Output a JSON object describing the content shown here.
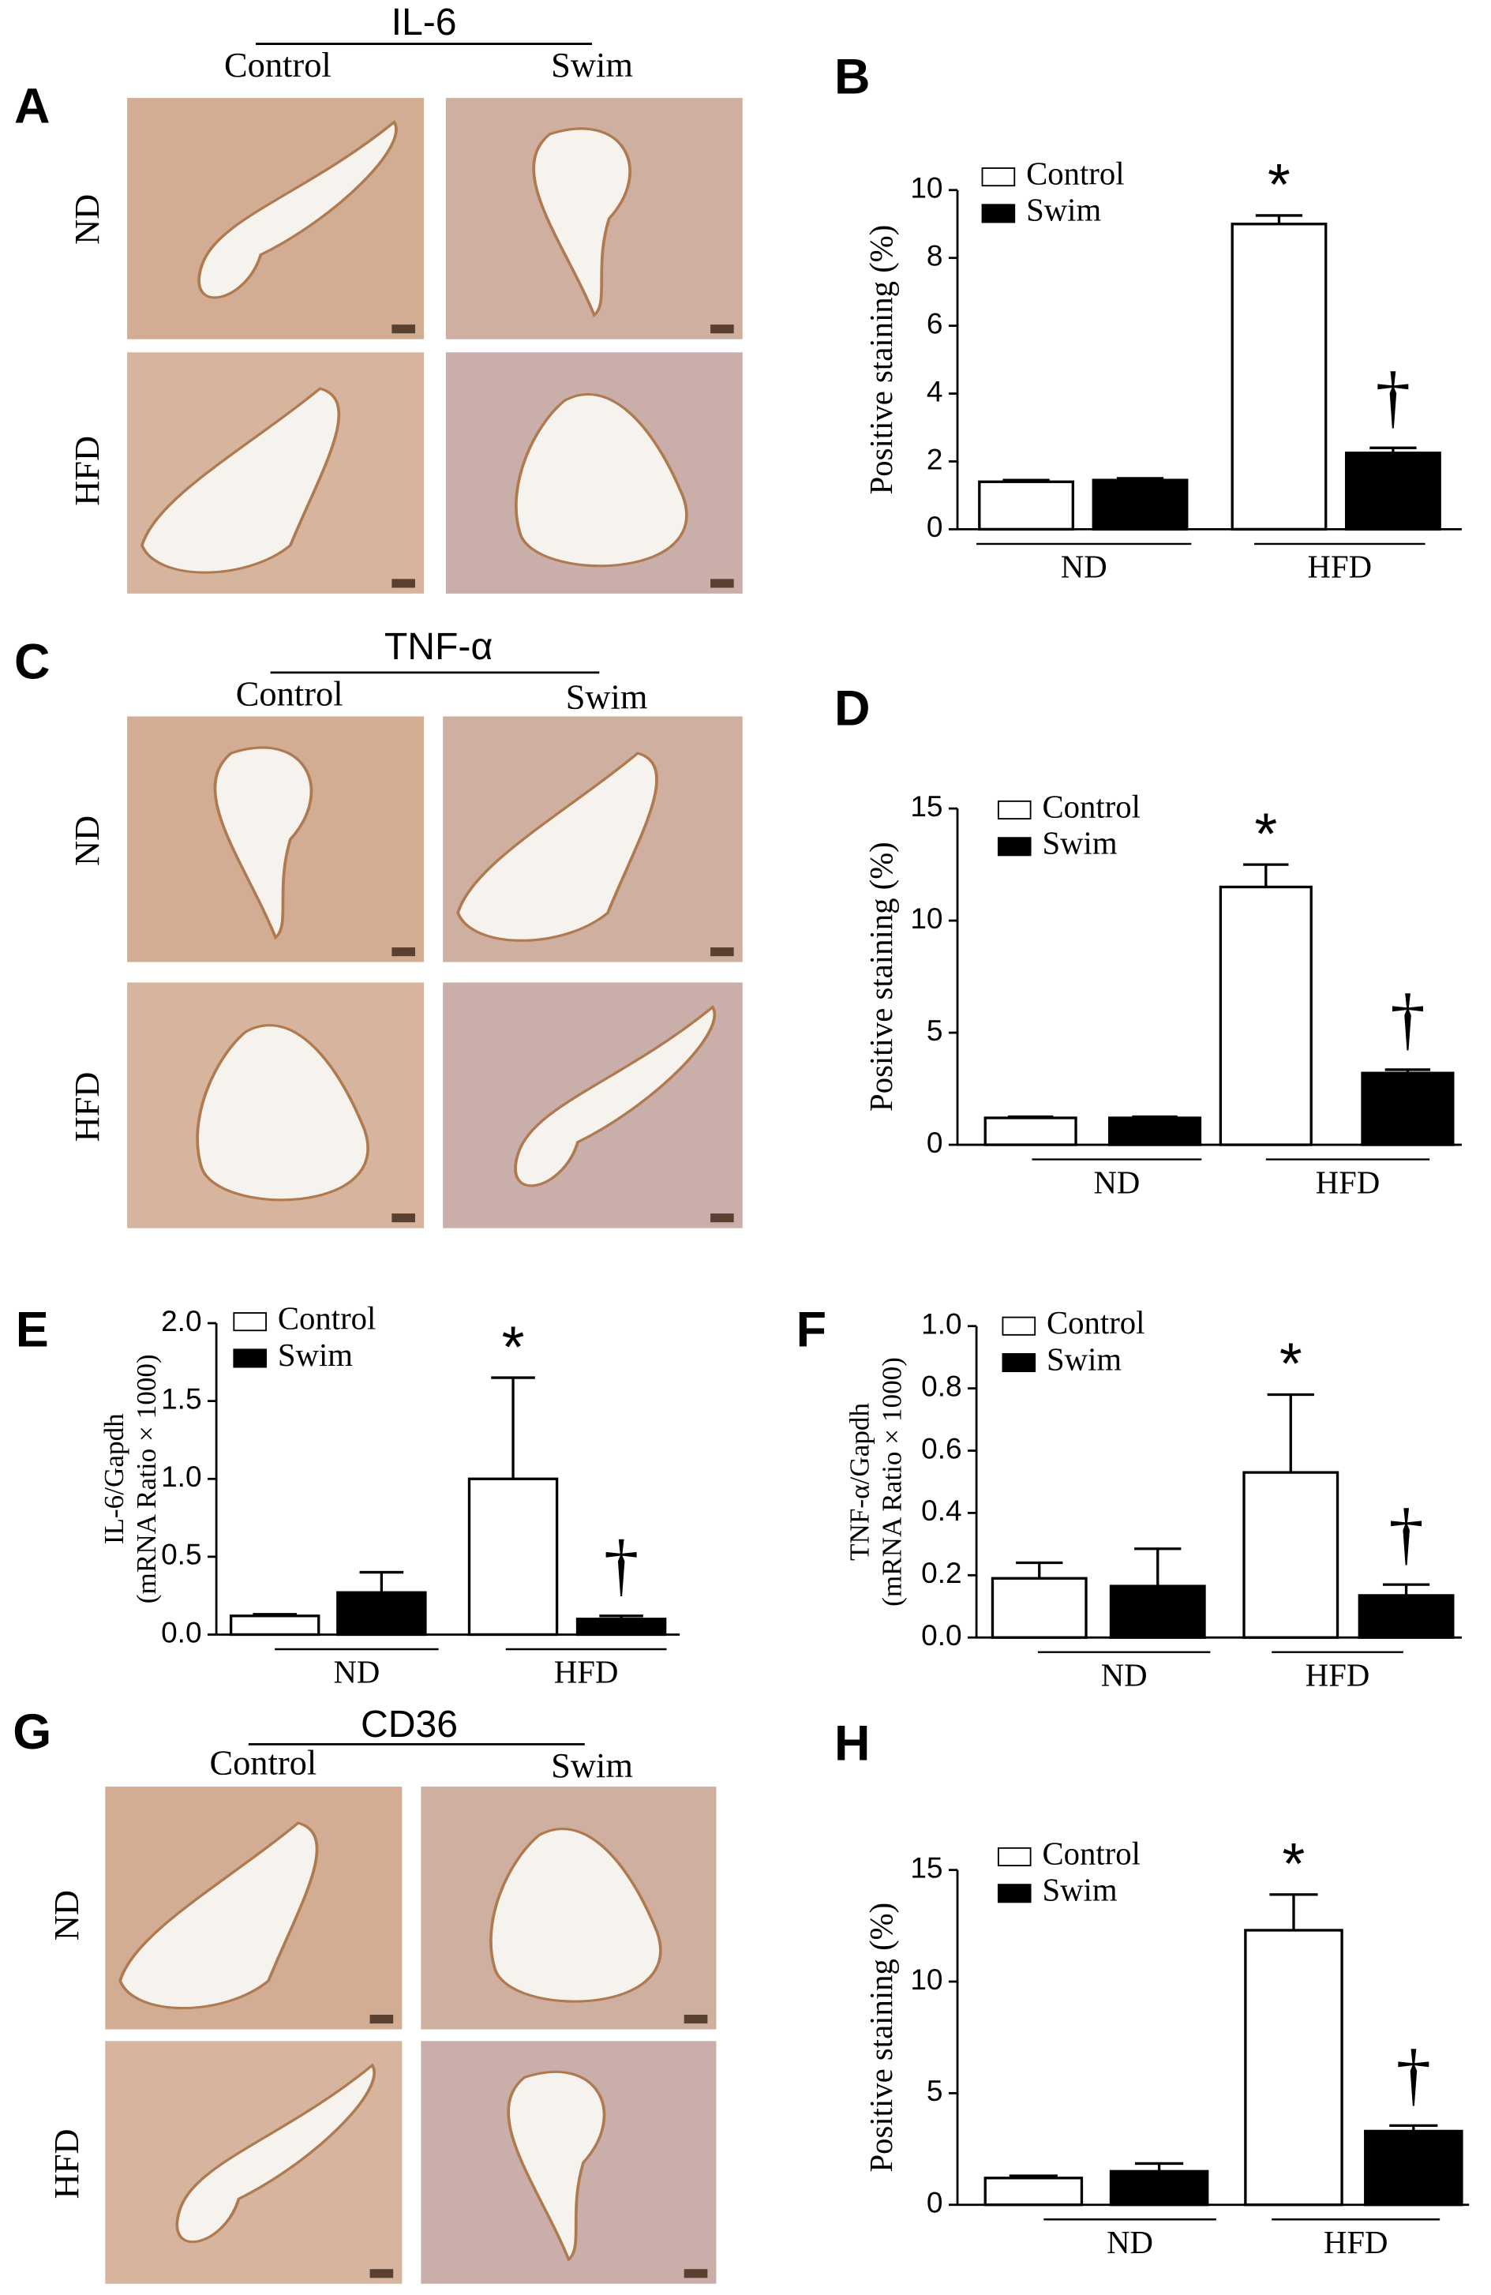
{
  "image_panels": [
    {
      "panel_label": "A",
      "title": "IL-6",
      "columns": [
        "Control",
        "Swim"
      ],
      "rows": [
        "ND",
        "HFD"
      ]
    },
    {
      "panel_label": "C",
      "title": "TNF-α",
      "columns": [
        "Control",
        "Swim"
      ],
      "rows": [
        "ND",
        "HFD"
      ]
    },
    {
      "panel_label": "G",
      "title": "CD36",
      "columns": [
        "Control",
        "Swim"
      ],
      "rows": [
        "ND",
        "HFD"
      ]
    }
  ],
  "chart_data": [
    {
      "type": "bar",
      "panel_label": "B",
      "ylabel": [
        "Positive staining (%)"
      ],
      "categories": [
        "ND",
        "HFD"
      ],
      "series": [
        {
          "name": "Control",
          "color": "#ffffff",
          "values": [
            1.4,
            9.0
          ],
          "errors": [
            0.05,
            0.25
          ],
          "annotations": [
            null,
            "*"
          ]
        },
        {
          "name": "Swim",
          "color": "#000000",
          "values": [
            1.45,
            2.25
          ],
          "errors": [
            0.05,
            0.15
          ],
          "annotations": [
            null,
            "†"
          ]
        }
      ],
      "ylim": [
        0,
        10
      ],
      "yticks": [
        0,
        2,
        4,
        6,
        8,
        10
      ]
    },
    {
      "type": "bar",
      "panel_label": "D",
      "ylabel": [
        "Positive staining (%)"
      ],
      "categories": [
        "ND",
        "HFD"
      ],
      "series": [
        {
          "name": "Control",
          "color": "#ffffff",
          "values": [
            1.2,
            11.5
          ],
          "errors": [
            0.05,
            1.0
          ],
          "annotations": [
            null,
            "*"
          ]
        },
        {
          "name": "Swim",
          "color": "#000000",
          "values": [
            1.2,
            3.2
          ],
          "errors": [
            0.05,
            0.15
          ],
          "annotations": [
            null,
            "†"
          ]
        }
      ],
      "ylim": [
        0,
        15
      ],
      "yticks": [
        0,
        5,
        10,
        15
      ]
    },
    {
      "type": "bar",
      "panel_label": "E",
      "ylabel": [
        "IL-6/Gapdh",
        "(mRNA Ratio × 1000)"
      ],
      "categories": [
        "ND",
        "HFD"
      ],
      "series": [
        {
          "name": "Control",
          "color": "#ffffff",
          "values": [
            0.12,
            1.0
          ],
          "errors": [
            0.01,
            0.65
          ],
          "annotations": [
            null,
            "*"
          ]
        },
        {
          "name": "Swim",
          "color": "#000000",
          "values": [
            0.27,
            0.1
          ],
          "errors": [
            0.13,
            0.02
          ],
          "annotations": [
            null,
            "†"
          ]
        }
      ],
      "ylim": [
        0,
        2
      ],
      "yticks": [
        {
          "value": 0,
          "label": "0.0"
        },
        0.5,
        {
          "value": 1,
          "label": "1.0"
        },
        1.5,
        {
          "value": 2,
          "label": "2.0"
        }
      ]
    },
    {
      "type": "bar",
      "panel_label": "F",
      "ylabel": [
        "TNF-α/Gapdh",
        "(mRNA Ratio × 1000)"
      ],
      "categories": [
        "ND",
        "HFD"
      ],
      "series": [
        {
          "name": "Control",
          "color": "#ffffff",
          "values": [
            0.19,
            0.53
          ],
          "errors": [
            0.05,
            0.25
          ],
          "annotations": [
            null,
            "*"
          ]
        },
        {
          "name": "Swim",
          "color": "#000000",
          "values": [
            0.165,
            0.135
          ],
          "errors": [
            0.12,
            0.035
          ],
          "annotations": [
            null,
            "†"
          ]
        }
      ],
      "ylim": [
        0,
        1
      ],
      "yticks": [
        {
          "value": 0,
          "label": "0.0"
        },
        0.2,
        0.4,
        0.6,
        0.8,
        {
          "value": 1,
          "label": "1.0"
        }
      ]
    },
    {
      "type": "bar",
      "panel_label": "H",
      "ylabel": [
        "Positive staining (%)"
      ],
      "categories": [
        "ND",
        "HFD"
      ],
      "series": [
        {
          "name": "Control",
          "color": "#ffffff",
          "values": [
            1.2,
            12.3
          ],
          "errors": [
            0.1,
            1.6
          ],
          "annotations": [
            null,
            "*"
          ]
        },
        {
          "name": "Swim",
          "color": "#000000",
          "values": [
            1.5,
            3.3
          ],
          "errors": [
            0.35,
            0.25
          ],
          "annotations": [
            null,
            "†"
          ]
        }
      ],
      "ylim": [
        0,
        15
      ],
      "yticks": [
        0,
        5,
        10,
        15
      ]
    }
  ]
}
